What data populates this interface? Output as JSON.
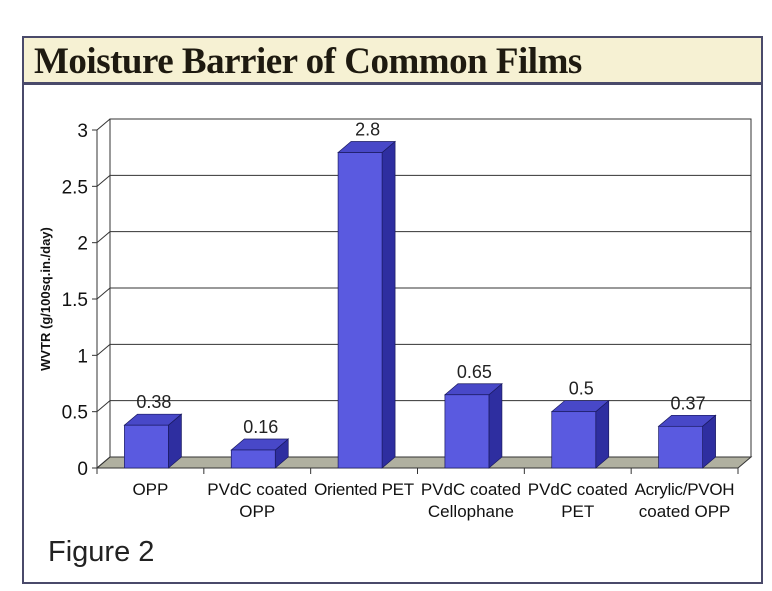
{
  "title": "Moisture Barrier of Common Films",
  "figure_label": "Figure 2",
  "colors": {
    "bar_front": "#5a5ae0",
    "bar_top": "#4848c8",
    "bar_side": "#2e2ea0",
    "floor": "#b0b0a0",
    "title_bg": "#f6f1d3"
  },
  "chart_data": {
    "type": "bar",
    "style": "3d",
    "title": "Moisture Barrier of Common Films",
    "ylabel": "WVTR (g/100sq.in./day)",
    "xlabel": "",
    "ylim": [
      0,
      3
    ],
    "yticks": [
      "0",
      "0.5",
      "1",
      "1.5",
      "2",
      "2.5",
      "3"
    ],
    "grid": true,
    "categories": [
      [
        "OPP"
      ],
      [
        "PVdC coated",
        "OPP"
      ],
      [
        "Oriented PET"
      ],
      [
        "PVdC coated",
        "Cellophane"
      ],
      [
        "PVdC coated",
        "PET"
      ],
      [
        "Acrylic/PVOH",
        "coated OPP"
      ]
    ],
    "values": [
      0.38,
      0.16,
      2.8,
      0.65,
      0.5,
      0.37
    ],
    "data_labels": [
      "0.38",
      "0.16",
      "2.8",
      "0.65",
      "0.5",
      "0.37"
    ]
  }
}
